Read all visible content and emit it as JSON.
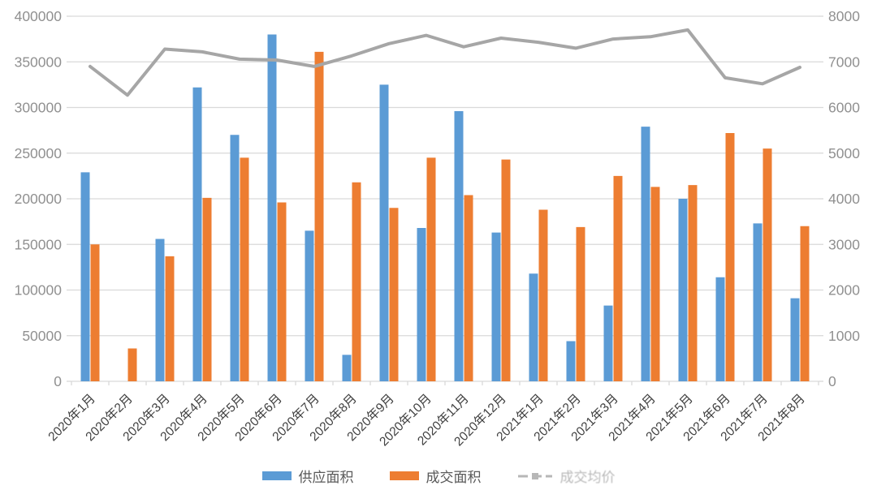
{
  "page": {
    "background": "#ffffff",
    "title": ""
  },
  "chart_data": {
    "type": "bar",
    "title": "",
    "subtitle": "",
    "grid": true,
    "legend_position": "bottom",
    "categories": [
      "2020年1月",
      "2020年2月",
      "2020年3月",
      "2020年4月",
      "2020年5月",
      "2020年6月",
      "2020年7月",
      "2020年8月",
      "2020年9月",
      "2020年10月",
      "2020年11月",
      "2020年12月",
      "2021年1月",
      "2021年2月",
      "2021年3月",
      "2021年4月",
      "2021年5月",
      "2021年6月",
      "2021年7月",
      "2021年8月"
    ],
    "series": [
      {
        "name": "供应面积",
        "slug": "supply-area",
        "type": "bar",
        "axis": "left",
        "color": "#5B9BD5",
        "values": [
          229000,
          0,
          156000,
          322000,
          270000,
          380000,
          165000,
          29000,
          325000,
          168000,
          296000,
          163000,
          118000,
          44000,
          83000,
          279000,
          200000,
          114000,
          173000,
          91000
        ]
      },
      {
        "name": "成交面积",
        "slug": "transaction-area",
        "type": "bar",
        "axis": "left",
        "color": "#ED7D31",
        "values": [
          150000,
          36000,
          137000,
          201000,
          245000,
          196000,
          361000,
          218000,
          190000,
          245000,
          204000,
          243000,
          188000,
          169000,
          225000,
          213000,
          215000,
          272000,
          255000,
          170000
        ]
      },
      {
        "name": "成交均价",
        "slug": "avg-transaction-price",
        "type": "line",
        "axis": "right",
        "color": "#A6A6A6",
        "legend_faded": true,
        "values": [
          6900,
          6270,
          7280,
          7220,
          7060,
          7040,
          6900,
          7130,
          7400,
          7580,
          7330,
          7520,
          7430,
          7300,
          7500,
          7550,
          7700,
          6650,
          6520,
          6880
        ]
      }
    ],
    "left_axis": {
      "min": 0,
      "max": 400000,
      "step": 50000,
      "tick_labels": [
        "0",
        "50000",
        "100000",
        "150000",
        "200000",
        "250000",
        "300000",
        "350000",
        "400000"
      ]
    },
    "right_axis": {
      "min": 0,
      "max": 8000,
      "step": 1000,
      "tick_labels": [
        "0",
        "1000",
        "2000",
        "3000",
        "4000",
        "5000",
        "6000",
        "7000",
        "8000"
      ]
    },
    "colors": {
      "gridline": "#D9D9D9",
      "axis_line": "#D9D9D9",
      "axis_tick_text": "#909090",
      "x_label_text": "#3f3f3f",
      "legend_text": "#595959"
    }
  }
}
